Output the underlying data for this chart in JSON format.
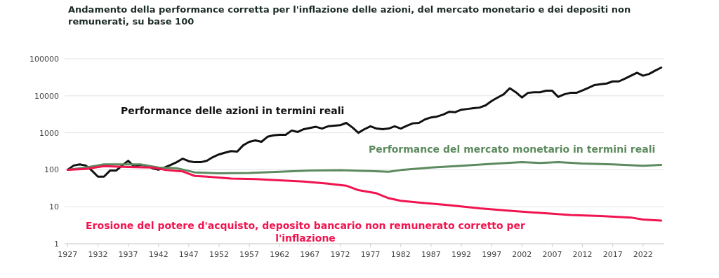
{
  "chart_data": {
    "type": "line",
    "title": "Andamento della performance corretta per l'inflazione delle azioni, del mercato monetario e dei depositi non remunerati, su base 100",
    "log": "y",
    "grid": "y",
    "xlim": [
      1926.5,
      2025.5
    ],
    "xticks": [
      1927,
      1932,
      1937,
      1942,
      1947,
      1952,
      1957,
      1962,
      1967,
      1972,
      1977,
      1982,
      1987,
      1992,
      1997,
      2002,
      2007,
      2012,
      2017,
      2022
    ],
    "ylim": [
      1,
      100000
    ],
    "yticks": [
      1,
      10,
      100,
      1000,
      10000,
      100000
    ],
    "series": [
      {
        "name": "Performance delle azioni in termini reali",
        "color": "#111111",
        "x": [
          1927,
          1928,
          1929,
          1930,
          1931,
          1932,
          1933,
          1934,
          1935,
          1936,
          1937,
          1938,
          1939,
          1940,
          1941,
          1942,
          1943,
          1944,
          1945,
          1946,
          1947,
          1948,
          1949,
          1950,
          1951,
          1952,
          1953,
          1954,
          1955,
          1956,
          1957,
          1958,
          1959,
          1960,
          1961,
          1962,
          1963,
          1964,
          1965,
          1966,
          1967,
          1968,
          1969,
          1970,
          1971,
          1972,
          1973,
          1974,
          1975,
          1976,
          1977,
          1978,
          1979,
          1980,
          1981,
          1982,
          1983,
          1984,
          1985,
          1986,
          1987,
          1988,
          1989,
          1990,
          1991,
          1992,
          1993,
          1994,
          1995,
          1996,
          1997,
          1998,
          1999,
          2000,
          2001,
          2002,
          2003,
          2004,
          2005,
          2006,
          2007,
          2008,
          2009,
          2010,
          2011,
          2012,
          2013,
          2014,
          2015,
          2016,
          2017,
          2018,
          2019,
          2020,
          2021,
          2022,
          2023,
          2024,
          2025
        ],
        "values": [
          100,
          130,
          140,
          130,
          95,
          65,
          65,
          95,
          95,
          130,
          175,
          120,
          135,
          130,
          110,
          100,
          115,
          135,
          160,
          200,
          170,
          160,
          160,
          175,
          220,
          260,
          290,
          320,
          310,
          460,
          570,
          620,
          570,
          780,
          850,
          880,
          880,
          1150,
          1050,
          1250,
          1350,
          1450,
          1300,
          1500,
          1550,
          1600,
          1850,
          1400,
          1000,
          1250,
          1500,
          1300,
          1250,
          1300,
          1500,
          1300,
          1550,
          1800,
          1850,
          2300,
          2600,
          2750,
          3100,
          3700,
          3600,
          4200,
          4400,
          4600,
          4800,
          5500,
          7200,
          9000,
          11000,
          16000,
          12500,
          9000,
          12000,
          12500,
          12500,
          13700,
          13700,
          9300,
          11000,
          12000,
          12000,
          14000,
          16500,
          19500,
          20500,
          21500,
          24500,
          24500,
          29000,
          35000,
          42000,
          35000,
          39000,
          48000,
          58000
        ]
      },
      {
        "name": "Performance del mercato monetario in termini reali",
        "color": "#5d8a5e",
        "x": [
          1927,
          1930,
          1933,
          1936,
          1939,
          1942,
          1945,
          1948,
          1952,
          1957,
          1962,
          1967,
          1972,
          1977,
          1980,
          1982,
          1987,
          1992,
          1997,
          2002,
          2005,
          2008,
          2012,
          2017,
          2022,
          2025
        ],
        "values": [
          100,
          115,
          140,
          140,
          140,
          115,
          110,
          85,
          80,
          82,
          88,
          95,
          97,
          92,
          88,
          98,
          115,
          128,
          145,
          160,
          152,
          160,
          148,
          140,
          128,
          135
        ]
      },
      {
        "name": "Erosione del potere d'acquisto, deposito bancario non remunerato corretto per l'inflazione",
        "color": "#f0144f",
        "x": [
          1927,
          1930,
          1933,
          1937,
          1941,
          1943,
          1946,
          1948,
          1950,
          1954,
          1958,
          1962,
          1966,
          1970,
          1973,
          1975,
          1978,
          1980,
          1982,
          1985,
          1990,
          1995,
          2000,
          2005,
          2010,
          2015,
          2020,
          2022,
          2025
        ],
        "values": [
          100,
          105,
          125,
          118,
          115,
          100,
          90,
          68,
          65,
          58,
          56,
          52,
          48,
          42,
          37,
          28,
          23,
          17,
          14.5,
          13,
          11,
          9,
          7.8,
          6.8,
          6,
          5.6,
          5.1,
          4.5,
          4.2
        ]
      }
    ]
  }
}
